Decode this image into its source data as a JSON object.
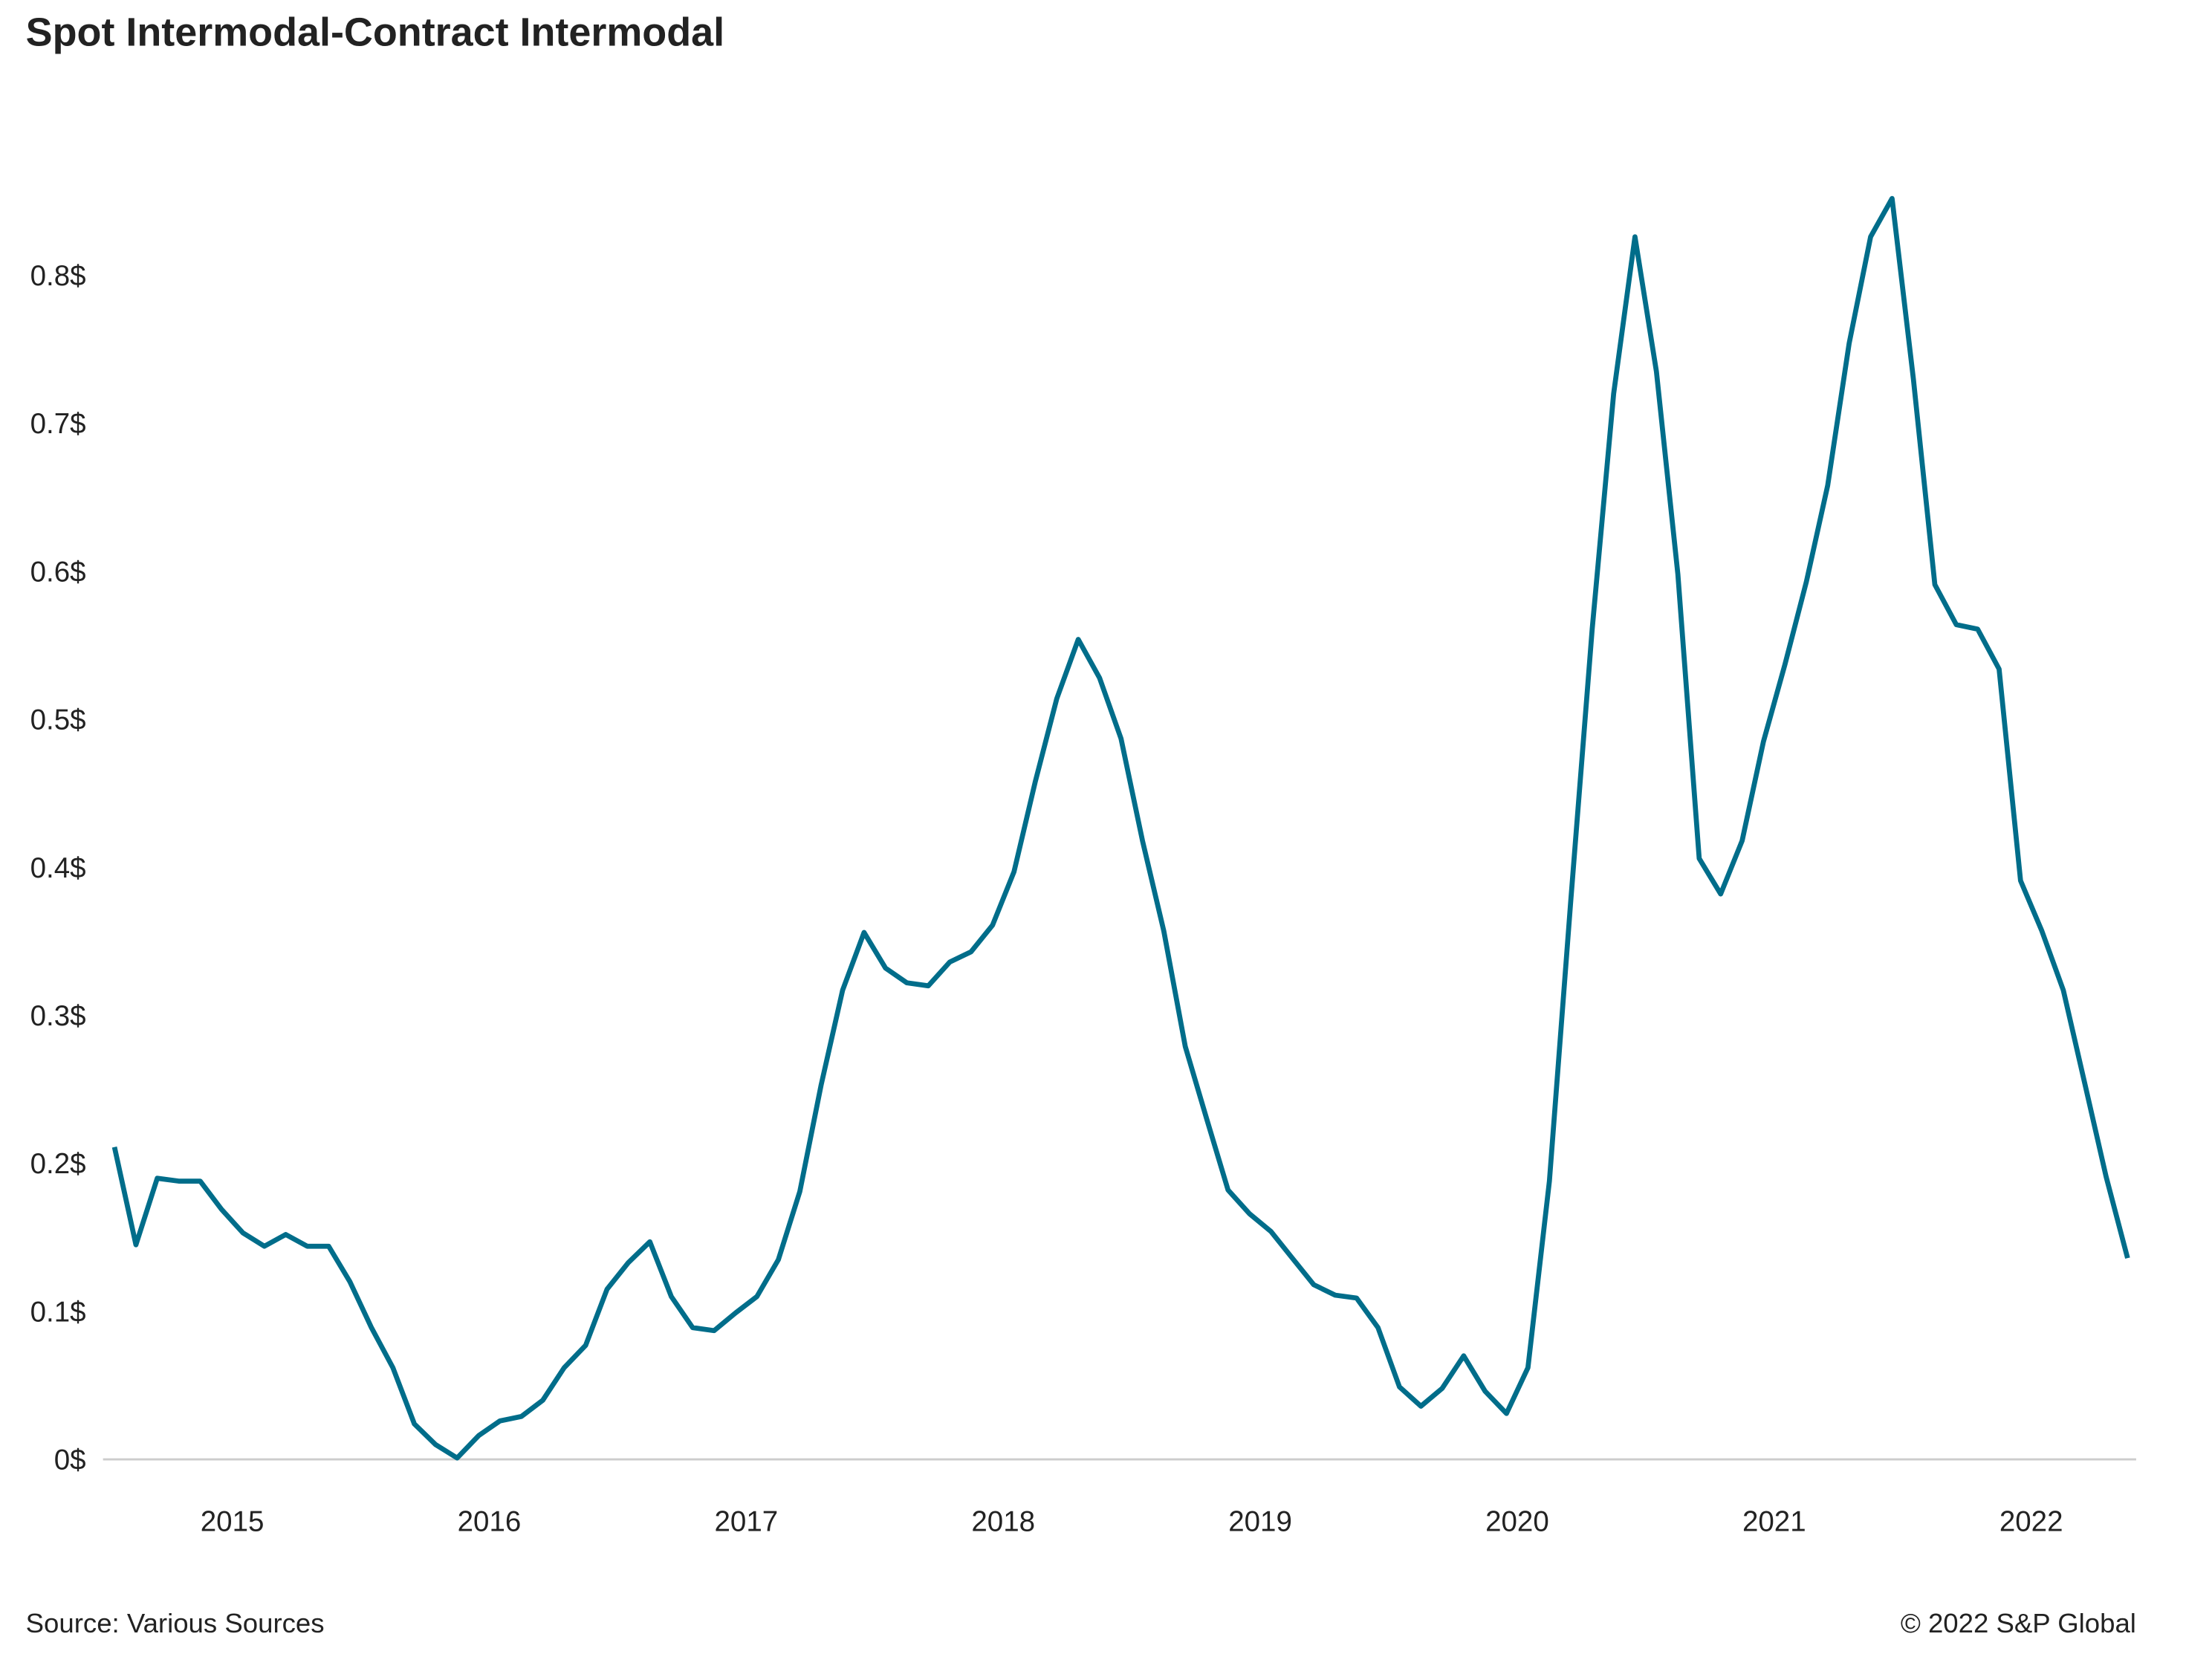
{
  "chart_data": {
    "type": "line",
    "title": "Spot Intermodal-Contract Intermodal",
    "source": "Source: Various Sources",
    "copyright": "© 2022 S&P Global",
    "categories": [
      null,
      null,
      null,
      null,
      null,
      "2015",
      null,
      null,
      null,
      null,
      null,
      null,
      null,
      null,
      null,
      null,
      null,
      "2016",
      null,
      null,
      null,
      null,
      null,
      null,
      null,
      null,
      null,
      null,
      null,
      "2017",
      null,
      null,
      null,
      null,
      null,
      null,
      null,
      null,
      null,
      null,
      null,
      "2018",
      null,
      null,
      null,
      null,
      null,
      null,
      null,
      null,
      null,
      null,
      null,
      "2019",
      null,
      null,
      null,
      null,
      null,
      null,
      null,
      null,
      null,
      null,
      null,
      "2020",
      null,
      null,
      null,
      null,
      null,
      null,
      null,
      null,
      null,
      null,
      null,
      "2021",
      null,
      null,
      null,
      null,
      null,
      null,
      null,
      null,
      null,
      null,
      null,
      "2022",
      null,
      null,
      null,
      null,
      null
    ],
    "series": [
      {
        "name": "Spot Intermodal-Contract Intermodal",
        "color": "#006d8a",
        "values": [
          0.211,
          0.145,
          0.19,
          0.188,
          0.188,
          0.169,
          0.153,
          0.144,
          0.152,
          0.144,
          0.144,
          0.12,
          0.089,
          0.062,
          0.024,
          0.01,
          0.001,
          0.016,
          0.026,
          0.029,
          0.04,
          0.062,
          0.077,
          0.115,
          0.133,
          0.147,
          0.11,
          0.089,
          0.087,
          0.099,
          0.11,
          0.135,
          0.181,
          0.253,
          0.317,
          0.356,
          0.332,
          0.322,
          0.32,
          0.336,
          0.343,
          0.361,
          0.397,
          0.458,
          0.514,
          0.554,
          0.528,
          0.487,
          0.418,
          0.357,
          0.279,
          0.23,
          0.182,
          0.166,
          0.154,
          0.136,
          0.118,
          0.111,
          0.109,
          0.089,
          0.049,
          0.036,
          0.048,
          0.07,
          0.046,
          0.031,
          0.062,
          0.188,
          0.377,
          0.561,
          0.72,
          0.826,
          0.735,
          0.598,
          0.406,
          0.382,
          0.418,
          0.485,
          0.537,
          0.593,
          0.658,
          0.754,
          0.826,
          0.852,
          0.73,
          0.591,
          0.564,
          0.561,
          0.534,
          0.391,
          0.357,
          0.317,
          0.254,
          0.191,
          0.136
        ]
      }
    ],
    "ylim": [
      0,
      0.9
    ],
    "yticks": [
      {
        "value": 0,
        "label": "0$"
      },
      {
        "value": 0.1,
        "label": "0.1$"
      },
      {
        "value": 0.2,
        "label": "0.2$"
      },
      {
        "value": 0.3,
        "label": "0.3$"
      },
      {
        "value": 0.4,
        "label": "0.4$"
      },
      {
        "value": 0.5,
        "label": "0.5$"
      },
      {
        "value": 0.6,
        "label": "0.6$"
      },
      {
        "value": 0.7,
        "label": "0.7$"
      },
      {
        "value": 0.8,
        "label": "0.8$"
      }
    ],
    "grid": false
  }
}
